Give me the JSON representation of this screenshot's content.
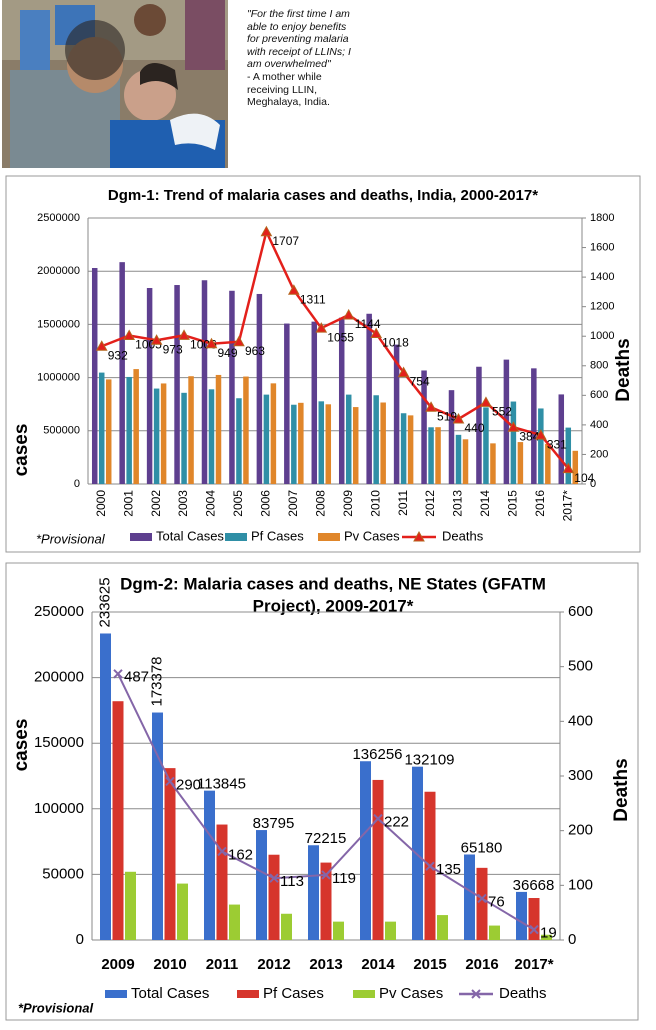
{
  "quote": {
    "text": "\"For the first time I am able to enjoy benefits for preventing malaria with receipt of LLINs; I am overwhelmed\"",
    "attribution": "- A mother while receiving LLIN, Meghalaya, India."
  },
  "chart_data": [
    {
      "type": "combo",
      "title": [
        "Dgm-1: Trend of malaria cases and deaths, India, 2000-2017*"
      ],
      "note": "*Provisional",
      "y_label": "cases",
      "y2_label": "Deaths",
      "categories": [
        "2000",
        "2001",
        "2002",
        "2003",
        "2004",
        "2005",
        "2006",
        "2007",
        "2008",
        "2009",
        "2010",
        "2011",
        "2012",
        "2013",
        "2014",
        "2015",
        "2016",
        "2017*"
      ],
      "ylim": [
        0,
        2500000
      ],
      "yticks": [
        0,
        500000,
        1000000,
        1500000,
        2000000,
        2500000
      ],
      "y2lim": [
        0,
        1800
      ],
      "y2ticks": [
        0,
        200,
        400,
        600,
        800,
        1000,
        1200,
        1400,
        1600,
        1800
      ],
      "grid": true,
      "marker": "triangle",
      "series": [
        {
          "name": "Total Cases",
          "kind": "bar",
          "color": "#5e3f8f",
          "values": [
            2030000,
            2085000,
            1842000,
            1870000,
            1915000,
            1816000,
            1786000,
            1508000,
            1526000,
            1563000,
            1600000,
            1310000,
            1067000,
            882000,
            1102000,
            1169000,
            1087000,
            842000
          ]
        },
        {
          "name": "Pf Cases",
          "kind": "bar",
          "color": "#2f8fa6",
          "values": [
            1047000,
            1006000,
            897000,
            857000,
            890000,
            806000,
            840000,
            745000,
            777000,
            840000,
            834000,
            665000,
            533000,
            462000,
            720000,
            775000,
            710000,
            530000
          ]
        },
        {
          "name": "Pv Cases",
          "kind": "bar",
          "color": "#e0862a",
          "values": [
            983000,
            1080000,
            945000,
            1013000,
            1025000,
            1010000,
            946000,
            763000,
            749000,
            723000,
            766000,
            645000,
            534000,
            420000,
            382000,
            394000,
            377000,
            312000
          ]
        },
        {
          "name": "Deaths",
          "kind": "line",
          "axis": "y2",
          "color": "#e3201b",
          "data_labels": true,
          "values": [
            932,
            1005,
            973,
            1006,
            949,
            963,
            1707,
            1311,
            1055,
            1144,
            1018,
            754,
            519,
            440,
            552,
            384,
            331,
            104
          ]
        }
      ]
    },
    {
      "type": "combo",
      "title": [
        "Dgm-2: Malaria cases and deaths, NE States (GFATM",
        "Project), 2009-2017*"
      ],
      "note": "*Provisional",
      "y_label": "cases",
      "y2_label": "Deaths",
      "categories": [
        "2009",
        "2010",
        "2011",
        "2012",
        "2013",
        "2014",
        "2015",
        "2016",
        "2017*"
      ],
      "ylim": [
        0,
        250000
      ],
      "yticks": [
        0,
        50000,
        100000,
        150000,
        200000,
        250000
      ],
      "y2lim": [
        0,
        600
      ],
      "y2ticks": [
        0,
        100,
        200,
        300,
        400,
        500,
        600
      ],
      "grid": true,
      "marker": "cross",
      "series": [
        {
          "name": "Total Cases",
          "kind": "bar",
          "color": "#3a6fcc",
          "data_labels": true,
          "values": [
            233625,
            173378,
            113845,
            83795,
            72215,
            136256,
            132109,
            65180,
            36668
          ]
        },
        {
          "name": "Pf Cases",
          "kind": "bar",
          "color": "#d6352c",
          "values": [
            182000,
            131000,
            88000,
            65000,
            59000,
            122000,
            113000,
            55000,
            32000
          ]
        },
        {
          "name": "Pv Cases",
          "kind": "bar",
          "color": "#9ccc33",
          "values": [
            52000,
            43000,
            27000,
            20000,
            14000,
            14000,
            19000,
            11000,
            4000
          ]
        },
        {
          "name": "Deaths",
          "kind": "line",
          "axis": "y2",
          "color": "#8466a8",
          "data_labels": true,
          "values": [
            487,
            290,
            162,
            113,
            119,
            222,
            135,
            76,
            19
          ]
        }
      ]
    }
  ]
}
